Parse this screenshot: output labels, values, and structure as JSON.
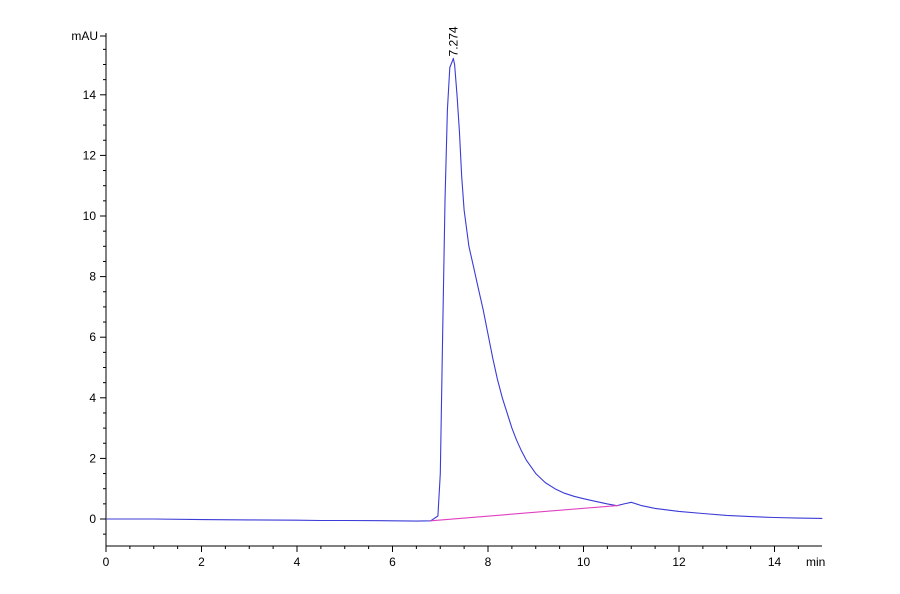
{
  "chart_data": {
    "type": "line",
    "title": "",
    "xlabel": "min",
    "ylabel": "mAU",
    "xlim": [
      0,
      15
    ],
    "ylim": [
      -0.9,
      16
    ],
    "x_ticks": [
      0,
      2,
      4,
      6,
      8,
      10,
      12,
      14
    ],
    "y_ticks": [
      0,
      2,
      4,
      6,
      8,
      10,
      12,
      14
    ],
    "grid": false,
    "colors": {
      "signal": "#3b3bd6",
      "baseline": "#e040c0",
      "axis": "#000000"
    },
    "series": [
      {
        "role": "signal",
        "x": [
          0,
          1.0,
          2.0,
          3.0,
          4.0,
          4.5,
          5.0,
          6.0,
          6.5,
          6.8,
          6.95,
          7.0,
          7.05,
          7.1,
          7.15,
          7.2,
          7.25,
          7.274,
          7.3,
          7.35,
          7.4,
          7.45,
          7.5,
          7.6,
          7.7,
          7.8,
          7.9,
          8.0,
          8.1,
          8.2,
          8.3,
          8.4,
          8.5,
          8.6,
          8.7,
          8.8,
          9.0,
          9.2,
          9.4,
          9.6,
          9.8,
          10.0,
          10.2,
          10.5,
          10.7,
          10.85,
          11.0,
          11.2,
          11.5,
          12.0,
          12.5,
          13.0,
          13.5,
          14.0,
          14.5,
          15.0
        ],
        "y": [
          0.0,
          0.0,
          -0.02,
          -0.03,
          -0.04,
          -0.05,
          -0.05,
          -0.06,
          -0.07,
          -0.06,
          0.1,
          1.5,
          6.0,
          10.5,
          13.5,
          14.9,
          15.1,
          15.2,
          15.0,
          14.0,
          12.8,
          11.3,
          10.2,
          9.0,
          8.3,
          7.6,
          6.9,
          6.1,
          5.3,
          4.6,
          4.0,
          3.5,
          3.0,
          2.6,
          2.25,
          1.95,
          1.5,
          1.2,
          1.0,
          0.85,
          0.75,
          0.67,
          0.6,
          0.5,
          0.44,
          0.5,
          0.55,
          0.45,
          0.35,
          0.25,
          0.18,
          0.12,
          0.08,
          0.05,
          0.03,
          0.02
        ]
      },
      {
        "role": "baseline",
        "x": [
          6.8,
          10.75
        ],
        "y": [
          -0.06,
          0.45
        ]
      }
    ],
    "annotations": [
      {
        "text": "7.274",
        "x": 7.274,
        "y": 15.2
      }
    ]
  }
}
